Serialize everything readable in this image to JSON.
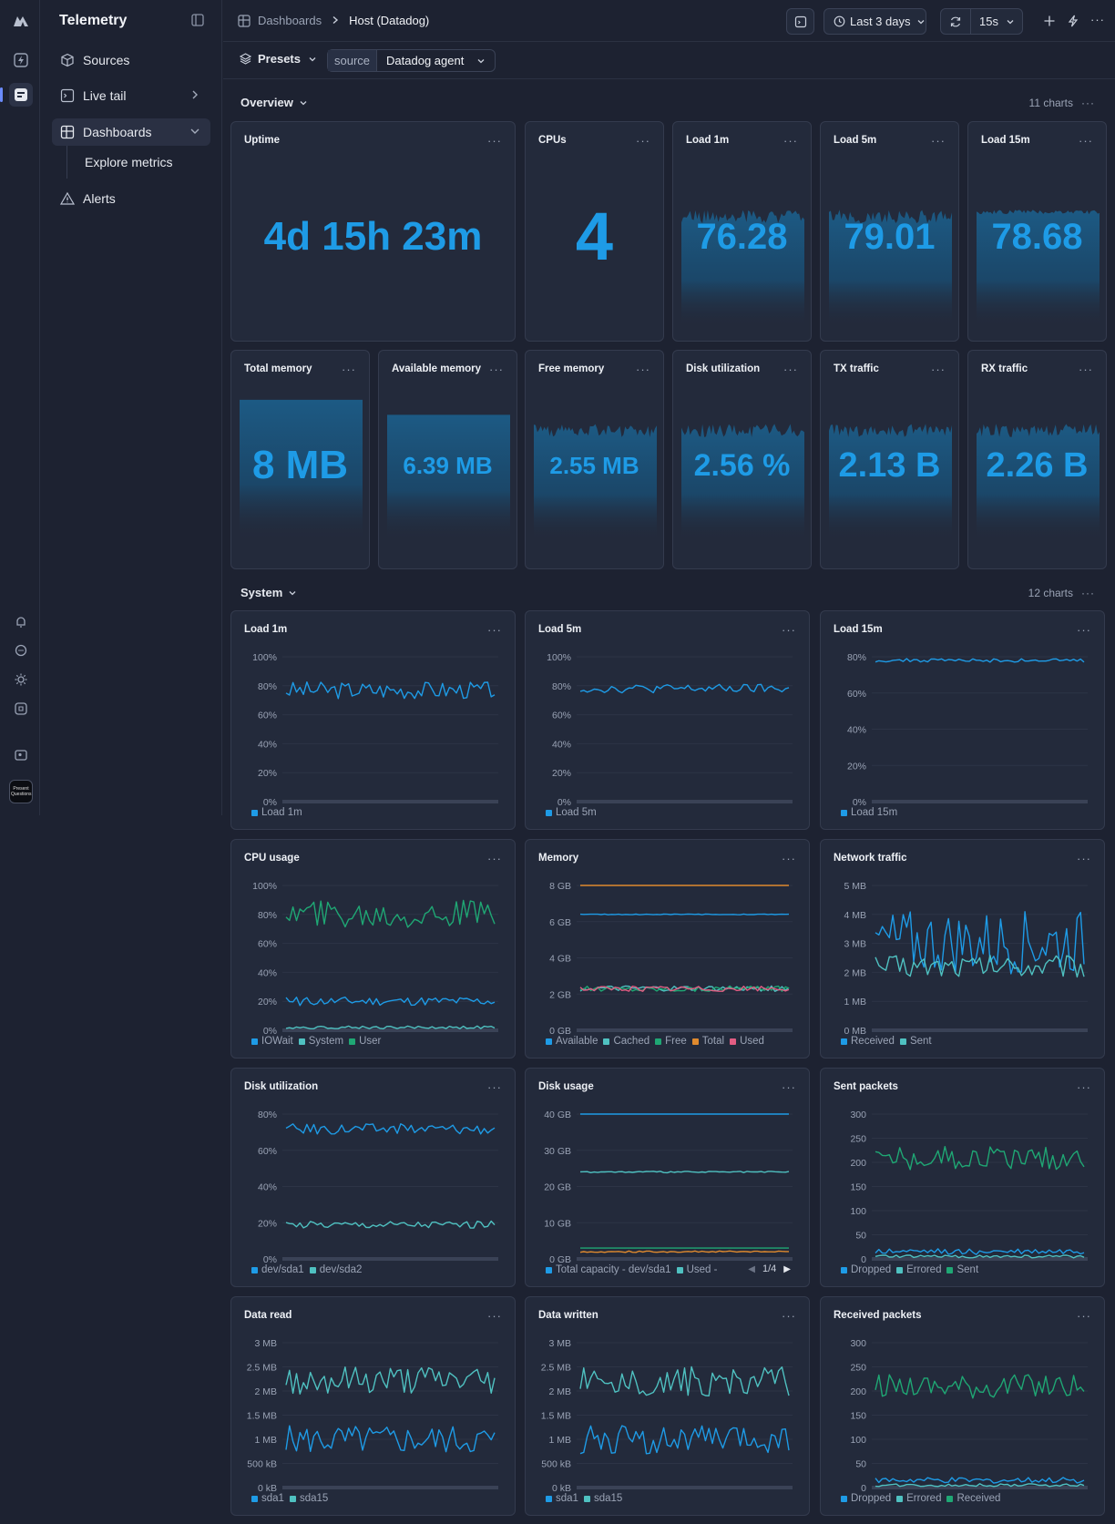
{
  "app": {
    "title": "Telemetry"
  },
  "nav": {
    "sources": "Sources",
    "live_tail": "Live tail",
    "dashboards": "Dashboards",
    "explore_metrics": "Explore metrics",
    "alerts": "Alerts"
  },
  "avatar": {
    "label": "Present Questions"
  },
  "breadcrumb": {
    "parent": "Dashboards",
    "current": "Host (Datadog)"
  },
  "toolbar": {
    "time_range": "Last 3 days",
    "refresh": "15s"
  },
  "filters": {
    "presets": "Presets",
    "source_key": "source",
    "source_value": "Datadog agent"
  },
  "sections": {
    "overview": {
      "title": "Overview",
      "count": "11 charts"
    },
    "system": {
      "title": "System",
      "count": "12 charts"
    }
  },
  "stats": [
    {
      "title": "Uptime",
      "value": "4d 15h 23m",
      "spark": 0
    },
    {
      "title": "CPUs",
      "value": "4",
      "spark": 0
    },
    {
      "title": "Load 1m",
      "value": "76.28",
      "spark": 1
    },
    {
      "title": "Load 5m",
      "value": "79.01",
      "spark": 1
    },
    {
      "title": "Load 15m",
      "value": "78.68",
      "spark": 1
    },
    {
      "title": "Total memory",
      "value": "8 MB",
      "spark": 1
    },
    {
      "title": "Available memory",
      "value": "6.39 MB",
      "spark": 1
    },
    {
      "title": "Free memory",
      "value": "2.55 MB",
      "spark": 1
    },
    {
      "title": "Disk utilization",
      "value": "2.56 %",
      "spark": 1
    },
    {
      "title": "TX traffic",
      "value": "2.13 B",
      "spark": 1
    },
    {
      "title": "RX traffic",
      "value": "2.26 B",
      "spark": 1
    }
  ],
  "colors": {
    "blue": "#1e9be6",
    "teal": "#4fc1c1",
    "green": "#1fa774",
    "orange": "#e08a2e",
    "pink": "#e25d83",
    "accent": "#1e9be6"
  },
  "chart_data": [
    {
      "type": "line",
      "title": "Load 1m",
      "yticks": [
        "100%",
        "80%",
        "60%",
        "40%",
        "20%",
        "0%"
      ],
      "ylim": [
        0,
        100
      ],
      "series": [
        {
          "name": "Load 1m",
          "color": "blue",
          "mean": 77,
          "amp": 6,
          "values": []
        }
      ]
    },
    {
      "type": "line",
      "title": "Load 5m",
      "yticks": [
        "100%",
        "80%",
        "60%",
        "40%",
        "20%",
        "0%"
      ],
      "ylim": [
        0,
        100
      ],
      "series": [
        {
          "name": "Load 5m",
          "color": "blue",
          "mean": 78,
          "amp": 3,
          "values": []
        }
      ]
    },
    {
      "type": "line",
      "title": "Load 15m",
      "yticks": [
        "80%",
        "60%",
        "40%",
        "20%",
        "0%"
      ],
      "ylim": [
        0,
        80
      ],
      "series": [
        {
          "name": "Load 15m",
          "color": "blue",
          "mean": 78,
          "amp": 1,
          "values": []
        }
      ]
    },
    {
      "type": "line",
      "title": "CPU usage",
      "yticks": [
        "100%",
        "80%",
        "60%",
        "40%",
        "20%",
        "0%"
      ],
      "ylim": [
        0,
        100
      ],
      "series": [
        {
          "name": "IOWait",
          "color": "blue",
          "mean": 20,
          "amp": 3,
          "values": []
        },
        {
          "name": "System",
          "color": "teal",
          "mean": 2,
          "amp": 1,
          "values": []
        },
        {
          "name": "User",
          "color": "green",
          "mean": 80,
          "amp": 10,
          "values": []
        }
      ]
    },
    {
      "type": "line",
      "title": "Memory",
      "yticks": [
        "8 GB",
        "6 GB",
        "4 GB",
        "2 GB",
        "0 GB"
      ],
      "ylim": [
        0,
        8
      ],
      "series": [
        {
          "name": "Available",
          "color": "blue",
          "mean": 6.4,
          "amp": 0.02,
          "values": []
        },
        {
          "name": "Cached",
          "color": "teal",
          "mean": 2.3,
          "amp": 0.15,
          "values": []
        },
        {
          "name": "Free",
          "color": "green",
          "mean": 2.3,
          "amp": 0.15,
          "values": []
        },
        {
          "name": "Total",
          "color": "orange",
          "mean": 8.0,
          "amp": 0,
          "values": []
        },
        {
          "name": "Used",
          "color": "pink",
          "mean": 2.3,
          "amp": 0.15,
          "values": []
        }
      ]
    },
    {
      "type": "line",
      "title": "Network traffic",
      "yticks": [
        "5 MB",
        "4 MB",
        "3 MB",
        "2 MB",
        "1 MB",
        "0 MB"
      ],
      "ylim": [
        0,
        5
      ],
      "series": [
        {
          "name": "Received",
          "color": "blue",
          "mean": 3.0,
          "amp": 1.1,
          "values": []
        },
        {
          "name": "Sent",
          "color": "teal",
          "mean": 2.2,
          "amp": 0.4,
          "values": []
        }
      ]
    },
    {
      "type": "line",
      "title": "Disk utilization",
      "yticks": [
        "80%",
        "60%",
        "40%",
        "20%",
        "0%"
      ],
      "ylim": [
        0,
        80
      ],
      "series": [
        {
          "name": "dev/sda1",
          "color": "blue",
          "mean": 72,
          "amp": 3,
          "values": []
        },
        {
          "name": "dev/sda2",
          "color": "teal",
          "mean": 19,
          "amp": 2,
          "values": []
        }
      ]
    },
    {
      "type": "line",
      "title": "Disk usage",
      "yticks": [
        "40 GB",
        "30 GB",
        "20 GB",
        "10 GB",
        "0 GB"
      ],
      "ylim": [
        0,
        40
      ],
      "legend_pager": "1/4",
      "series": [
        {
          "name": "Total capacity - dev/sda1",
          "color": "blue",
          "mean": 40,
          "amp": 0,
          "values": []
        },
        {
          "name": "Used - ",
          "color": "teal",
          "mean": 24,
          "amp": 0.2,
          "values": []
        },
        {
          "name": "",
          "color": "green",
          "mean": 3,
          "amp": 0,
          "values": []
        },
        {
          "name": "",
          "color": "orange",
          "mean": 2,
          "amp": 0.2,
          "values": []
        }
      ]
    },
    {
      "type": "line",
      "title": "Sent packets",
      "yticks": [
        "300",
        "250",
        "200",
        "150",
        "100",
        "50",
        "0"
      ],
      "ylim": [
        0,
        300
      ],
      "series": [
        {
          "name": "Dropped",
          "color": "blue",
          "mean": 15,
          "amp": 6,
          "values": []
        },
        {
          "name": "Errored",
          "color": "teal",
          "mean": 5,
          "amp": 3,
          "values": []
        },
        {
          "name": "Sent",
          "color": "green",
          "mean": 210,
          "amp": 25,
          "values": []
        }
      ]
    },
    {
      "type": "line",
      "title": "Data read",
      "yticks": [
        "3 MB",
        "2.5 MB",
        "2 MB",
        "1.5 MB",
        "1 MB",
        "500 kB",
        "0 kB"
      ],
      "ylim": [
        0,
        3
      ],
      "series": [
        {
          "name": "sda1",
          "color": "blue",
          "mean": 1.0,
          "amp": 0.3,
          "values": []
        },
        {
          "name": "sda15",
          "color": "teal",
          "mean": 2.2,
          "amp": 0.3,
          "values": []
        }
      ]
    },
    {
      "type": "line",
      "title": "Data written",
      "yticks": [
        "3 MB",
        "2.5 MB",
        "2 MB",
        "1.5 MB",
        "1 MB",
        "500 kB",
        "0 kB"
      ],
      "ylim": [
        0,
        3
      ],
      "series": [
        {
          "name": "sda1",
          "color": "blue",
          "mean": 1.0,
          "amp": 0.3,
          "values": []
        },
        {
          "name": "sda15",
          "color": "teal",
          "mean": 2.2,
          "amp": 0.3,
          "values": []
        }
      ]
    },
    {
      "type": "line",
      "title": "Received packets",
      "yticks": [
        "300",
        "250",
        "200",
        "150",
        "100",
        "50",
        "0"
      ],
      "ylim": [
        0,
        300
      ],
      "series": [
        {
          "name": "Dropped",
          "color": "blue",
          "mean": 15,
          "amp": 6,
          "values": []
        },
        {
          "name": "Errored",
          "color": "teal",
          "mean": 5,
          "amp": 3,
          "values": []
        },
        {
          "name": "Received",
          "color": "green",
          "mean": 210,
          "amp": 25,
          "values": []
        }
      ]
    }
  ]
}
